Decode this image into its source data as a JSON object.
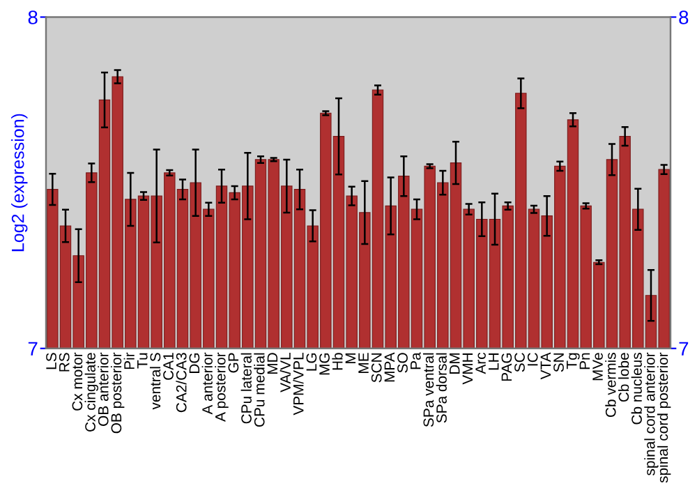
{
  "chart_data": {
    "type": "bar",
    "ylabel": "Log2 (expression)",
    "categories": [
      "LS",
      "RS",
      "Cx motor",
      "Cx cingulate",
      "OB anterior",
      "OB posterior",
      "Pir",
      "Tu",
      "ventral S",
      "CA1",
      "CA2/CA3",
      "DG",
      "A anterior",
      "A posterior",
      "GP",
      "CPu lateral",
      "CPu medial",
      "MD",
      "VA/VL",
      "VPM/VPL",
      "LG",
      "MG",
      "Hb",
      "M",
      "ME",
      "SCN",
      "MPA",
      "SO",
      "Pa",
      "SPa ventral",
      "SPa dorsal",
      "DM",
      "VMH",
      "Arc",
      "LH",
      "PAG",
      "SC",
      "IC",
      "VTA",
      "SN",
      "Tg",
      "Pn",
      "MVe",
      "Cb vermis",
      "Cb lobe",
      "Cb nucleus",
      "spinal cord anterior",
      "spinal cord posterior"
    ],
    "values": [
      7.48,
      7.37,
      7.28,
      7.53,
      7.75,
      7.82,
      7.45,
      7.46,
      7.46,
      7.53,
      7.48,
      7.5,
      7.42,
      7.49,
      7.47,
      7.49,
      7.57,
      7.57,
      7.49,
      7.48,
      7.37,
      7.71,
      7.64,
      7.46,
      7.41,
      7.78,
      7.43,
      7.52,
      7.42,
      7.55,
      7.5,
      7.56,
      7.42,
      7.39,
      7.39,
      7.43,
      7.77,
      7.42,
      7.4,
      7.55,
      7.69,
      7.43,
      7.26,
      7.57,
      7.64,
      7.42,
      7.16,
      7.54
    ],
    "errors": [
      0.047,
      0.049,
      0.08,
      0.028,
      0.083,
      0.02,
      0.08,
      0.012,
      0.14,
      0.008,
      0.03,
      0.1,
      0.02,
      0.05,
      0.02,
      0.1,
      0.01,
      0.005,
      0.08,
      0.06,
      0.047,
      0.006,
      0.115,
      0.028,
      0.095,
      0.014,
      0.086,
      0.06,
      0.03,
      0.006,
      0.036,
      0.064,
      0.016,
      0.051,
      0.077,
      0.011,
      0.045,
      0.011,
      0.06,
      0.014,
      0.02,
      0.008,
      0.006,
      0.047,
      0.028,
      0.062,
      0.077,
      0.014
    ],
    "color": "#b03030",
    "ylim": [
      7,
      8
    ],
    "yticks": [
      7,
      8
    ],
    "y2lim": [
      7,
      8
    ],
    "y2ticks": [
      7,
      8
    ],
    "grid": false,
    "legend": false
  }
}
